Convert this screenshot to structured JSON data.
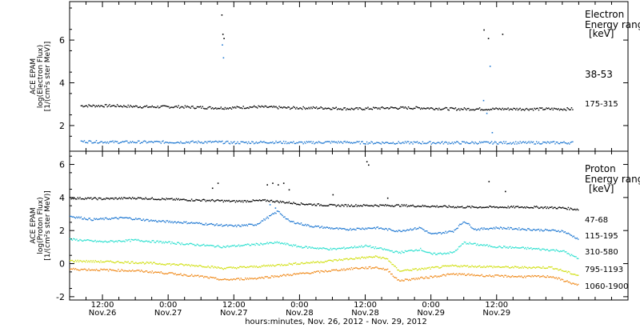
{
  "chart_data": [
    {
      "type": "scatter",
      "panel": "electron",
      "ylabel": [
        "ACE EPAM",
        "log(Electron Flux)",
        "[1/(cm²s ster MeV)]"
      ],
      "ylim": [
        0.8,
        7.8
      ],
      "yticks": [
        2,
        4,
        6
      ],
      "xlim_hours": [
        0,
        102
      ],
      "legend": {
        "title": [
          "Electron",
          "Energy ranges"
        ],
        "unit": "[keV]"
      },
      "series": [
        {
          "name": "38-53",
          "color": "#000000",
          "values": [
            [
              2,
              2.95
            ],
            [
              8,
              2.95
            ],
            [
              14,
              2.9
            ],
            [
              20,
              2.9
            ],
            [
              27,
              2.85
            ],
            [
              28.5,
              2.85
            ],
            [
              34,
              2.9
            ],
            [
              40,
              2.85
            ],
            [
              46,
              2.85
            ],
            [
              52,
              2.8
            ],
            [
              58,
              2.85
            ],
            [
              64,
              2.85
            ],
            [
              70,
              2.8
            ],
            [
              76,
              2.8
            ],
            [
              82,
              2.8
            ],
            [
              88,
              2.8
            ],
            [
              92,
              2.8
            ]
          ],
          "spikes": [
            [
              27.7,
              7.2
            ],
            [
              27.9,
              6.3
            ],
            [
              28.1,
              6.1
            ],
            [
              75.6,
              6.5
            ],
            [
              76.4,
              6.1
            ],
            [
              79,
              6.3
            ]
          ]
        },
        {
          "name": "175-315",
          "color": "#1f78d2",
          "values": [
            [
              2,
              1.28
            ],
            [
              8,
              1.25
            ],
            [
              14,
              1.25
            ],
            [
              20,
              1.25
            ],
            [
              27,
              1.25
            ],
            [
              30,
              1.22
            ],
            [
              36,
              1.25
            ],
            [
              42,
              1.22
            ],
            [
              48,
              1.25
            ],
            [
              54,
              1.22
            ],
            [
              60,
              1.22
            ],
            [
              66,
              1.22
            ],
            [
              72,
              1.22
            ],
            [
              78,
              1.22
            ],
            [
              84,
              1.22
            ],
            [
              92,
              1.22
            ]
          ],
          "spikes": [
            [
              27.8,
              5.8
            ],
            [
              28.0,
              5.2
            ],
            [
              75.5,
              3.2
            ],
            [
              76.1,
              2.6
            ],
            [
              76.7,
              4.8
            ],
            [
              77.1,
              1.7
            ]
          ]
        }
      ]
    },
    {
      "type": "scatter",
      "panel": "proton",
      "ylabel": [
        "ACE EPAM",
        "log(Proton Flux)",
        "[1/(cm²s ster MeV)]"
      ],
      "ylim": [
        -2.2,
        6.8
      ],
      "yticks": [
        -2,
        0,
        2,
        4,
        6
      ],
      "xlim_hours": [
        0,
        102
      ],
      "legend": {
        "title": [
          "Proton",
          "Energy ranges"
        ],
        "unit": "[keV]"
      },
      "series": [
        {
          "name": "47-68",
          "color": "#000000",
          "values": [
            [
              0,
              4.0
            ],
            [
              6,
              3.95
            ],
            [
              12,
              4.0
            ],
            [
              20,
              3.9
            ],
            [
              26,
              3.85
            ],
            [
              30,
              3.8
            ],
            [
              36,
              3.85
            ],
            [
              42,
              3.65
            ],
            [
              48,
              3.55
            ],
            [
              54,
              3.55
            ],
            [
              60,
              3.55
            ],
            [
              66,
              3.5
            ],
            [
              72,
              3.45
            ],
            [
              78,
              3.45
            ],
            [
              84,
              3.45
            ],
            [
              90,
              3.4
            ],
            [
              93,
              3.3
            ]
          ],
          "spikes": [
            [
              26,
              4.6
            ],
            [
              27,
              4.9
            ],
            [
              36,
              4.8
            ],
            [
              37,
              4.9
            ],
            [
              38,
              4.8
            ],
            [
              39,
              4.9
            ],
            [
              40,
              4.5
            ],
            [
              48,
              4.2
            ],
            [
              54.2,
              6.2
            ],
            [
              54.5,
              6.0
            ],
            [
              58,
              4.0
            ],
            [
              76.5,
              5.0
            ],
            [
              79.5,
              4.4
            ]
          ]
        },
        {
          "name": "115-195",
          "color": "#1f78d2",
          "values": [
            [
              0,
              2.9
            ],
            [
              4,
              2.7
            ],
            [
              10,
              2.8
            ],
            [
              16,
              2.6
            ],
            [
              22,
              2.5
            ],
            [
              26,
              2.4
            ],
            [
              30,
              2.3
            ],
            [
              34,
              2.4
            ],
            [
              38,
              3.2
            ],
            [
              40,
              2.6
            ],
            [
              44,
              2.3
            ],
            [
              50,
              2.1
            ],
            [
              56,
              2.2
            ],
            [
              60,
              2.0
            ],
            [
              64,
              2.2
            ],
            [
              66,
              1.8
            ],
            [
              70,
              2.0
            ],
            [
              72,
              2.6
            ],
            [
              74,
              2.1
            ],
            [
              78,
              2.2
            ],
            [
              84,
              2.1
            ],
            [
              90,
              2.0
            ],
            [
              93,
              1.5
            ]
          ],
          "spikes": [
            [
              36.5,
              3.6
            ],
            [
              37.5,
              3.4
            ]
          ]
        },
        {
          "name": "310-580",
          "color": "#2fe0d0",
          "values": [
            [
              0,
              1.5
            ],
            [
              6,
              1.35
            ],
            [
              12,
              1.45
            ],
            [
              18,
              1.3
            ],
            [
              24,
              1.15
            ],
            [
              26,
              1.1
            ],
            [
              28,
              1.05
            ],
            [
              34,
              1.2
            ],
            [
              38,
              1.3
            ],
            [
              42,
              1.05
            ],
            [
              48,
              0.9
            ],
            [
              54,
              1.1
            ],
            [
              58,
              0.85
            ],
            [
              60,
              0.7
            ],
            [
              64,
              0.9
            ],
            [
              66,
              0.6
            ],
            [
              70,
              0.7
            ],
            [
              72,
              1.3
            ],
            [
              74,
              1.2
            ],
            [
              78,
              1.05
            ],
            [
              84,
              0.95
            ],
            [
              90,
              0.8
            ],
            [
              93,
              0.3
            ]
          ]
        },
        {
          "name": "795-1193",
          "color": "#d2e017",
          "values": [
            [
              0,
              0.2
            ],
            [
              6,
              0.15
            ],
            [
              12,
              0.1
            ],
            [
              18,
              0.0
            ],
            [
              24,
              -0.1
            ],
            [
              28,
              -0.25
            ],
            [
              34,
              -0.15
            ],
            [
              40,
              0.0
            ],
            [
              46,
              0.15
            ],
            [
              52,
              0.35
            ],
            [
              56,
              0.45
            ],
            [
              58,
              0.3
            ],
            [
              60,
              -0.4
            ],
            [
              64,
              -0.3
            ],
            [
              70,
              -0.1
            ],
            [
              76,
              -0.15
            ],
            [
              82,
              -0.2
            ],
            [
              88,
              -0.2
            ],
            [
              93,
              -0.7
            ]
          ]
        },
        {
          "name": "1060-1900",
          "color": "#f08c1e",
          "values": [
            [
              0,
              -0.3
            ],
            [
              6,
              -0.35
            ],
            [
              12,
              -0.4
            ],
            [
              18,
              -0.55
            ],
            [
              24,
              -0.75
            ],
            [
              28,
              -0.95
            ],
            [
              34,
              -0.85
            ],
            [
              40,
              -0.65
            ],
            [
              46,
              -0.45
            ],
            [
              52,
              -0.25
            ],
            [
              56,
              -0.2
            ],
            [
              58,
              -0.35
            ],
            [
              60,
              -1.0
            ],
            [
              64,
              -0.85
            ],
            [
              70,
              -0.6
            ],
            [
              76,
              -0.7
            ],
            [
              82,
              -0.75
            ],
            [
              88,
              -0.75
            ],
            [
              93,
              -1.3
            ]
          ]
        }
      ]
    }
  ],
  "x_axis": {
    "ticks": [
      {
        "hours": 6,
        "time": "12:00",
        "day": "Nov.26"
      },
      {
        "hours": 18,
        "time": "0:00",
        "day": "Nov.27"
      },
      {
        "hours": 30,
        "time": "12:00",
        "day": "Nov.27"
      },
      {
        "hours": 42,
        "time": "0:00",
        "day": "Nov.28"
      },
      {
        "hours": 54,
        "time": "12:00",
        "day": "Nov.28"
      },
      {
        "hours": 66,
        "time": "0:00",
        "day": "Nov.29"
      },
      {
        "hours": 78,
        "time": "12:00",
        "day": "Nov.29"
      }
    ],
    "label": "hours:minutes, Nov. 26, 2012 - Nov. 29, 2012"
  }
}
